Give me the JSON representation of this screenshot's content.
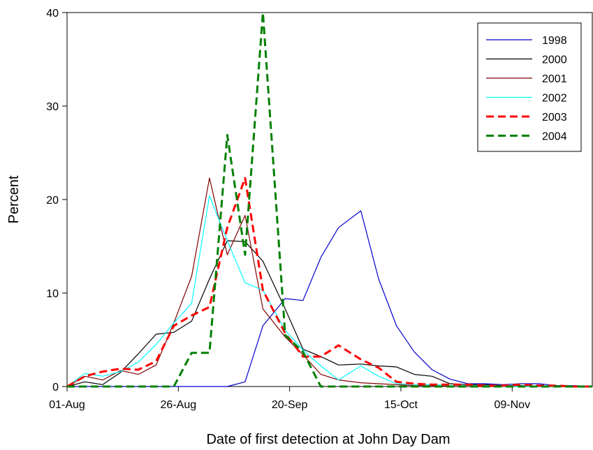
{
  "chart_data": {
    "type": "line",
    "title": "",
    "xlabel": "Date of first detection at John Day Dam",
    "ylabel": "Percent",
    "x_tick_labels": [
      "01-Aug",
      "26-Aug",
      "20-Sep",
      "15-Oct",
      "09-Nov"
    ],
    "x_ticks": [
      "2000-08-01",
      "2000-08-26",
      "2000-09-20",
      "2000-10-15",
      "2000-11-09"
    ],
    "xlim": [
      "2000-08-01",
      "2000-11-27"
    ],
    "ylim": [
      0,
      40
    ],
    "y_ticks": [
      0,
      10,
      20,
      30,
      40
    ],
    "grid": false,
    "legend": "top-right",
    "x": [
      "2000-08-01",
      "2000-08-05",
      "2000-08-09",
      "2000-08-13",
      "2000-08-17",
      "2000-08-21",
      "2000-08-25",
      "2000-08-29",
      "2000-09-02",
      "2000-09-06",
      "2000-09-10",
      "2000-09-14",
      "2000-09-19",
      "2000-09-23",
      "2000-09-27",
      "2000-10-01",
      "2000-10-06",
      "2000-10-10",
      "2000-10-14",
      "2000-10-18",
      "2000-10-22",
      "2000-10-26",
      "2000-10-30",
      "2000-11-03",
      "2000-11-07",
      "2000-11-11",
      "2000-11-15",
      "2000-11-19",
      "2000-11-23",
      "2000-11-27"
    ],
    "series": [
      {
        "name": "1998",
        "color": "#0000cc",
        "dash": false,
        "width": 1.2,
        "values": [
          0,
          0,
          0,
          0,
          0,
          0,
          0,
          0,
          0,
          0,
          0.5,
          6.5,
          9.4,
          9.2,
          13.8,
          17.0,
          18.8,
          11.5,
          6.5,
          3.7,
          1.8,
          0.8,
          0.3,
          0.3,
          0.2,
          0.3,
          0.3,
          0.1,
          0.1,
          0
        ]
      },
      {
        "name": "2000",
        "color": "#000000",
        "dash": false,
        "width": 1.2,
        "values": [
          0,
          0.5,
          0.2,
          1.5,
          3.5,
          5.6,
          5.8,
          7.0,
          11.5,
          15.6,
          15.5,
          13.4,
          8.3,
          4.0,
          3.2,
          2.3,
          2.4,
          2.2,
          2.1,
          1.3,
          1.1,
          0.3,
          0.2,
          0.2,
          0.1,
          0.1,
          0,
          0,
          0,
          0
        ]
      },
      {
        "name": "2001",
        "color": "#800000",
        "dash": false,
        "width": 1.2,
        "values": [
          0,
          1.1,
          0.7,
          1.7,
          1.3,
          2.3,
          6.8,
          11.8,
          22.3,
          14.1,
          18.3,
          8.3,
          5.3,
          3.4,
          1.3,
          0.7,
          0.4,
          0.3,
          0.2,
          0.1,
          0.1,
          0,
          0,
          0,
          0,
          0,
          0,
          0,
          0,
          0
        ]
      },
      {
        "name": "2002",
        "color": "#00ffff",
        "dash": false,
        "width": 1.2,
        "values": [
          0,
          1.4,
          1.1,
          1.6,
          2.6,
          4.5,
          6.8,
          8.9,
          20.4,
          15.6,
          11.1,
          10.3,
          6.0,
          3.9,
          2.2,
          0.7,
          2.2,
          1.1,
          0.3,
          0.2,
          0.2,
          0.1,
          0.1,
          0.1,
          0,
          0,
          0,
          0,
          0,
          0
        ]
      },
      {
        "name": "2003",
        "color": "#ff0000",
        "dash": true,
        "width": 3,
        "values": [
          0,
          1.1,
          1.6,
          1.9,
          1.8,
          2.7,
          6.5,
          7.6,
          8.5,
          17.0,
          22.3,
          10.3,
          5.7,
          3.2,
          3.2,
          4.4,
          2.9,
          2.0,
          0.5,
          0.3,
          0.2,
          0.2,
          0.2,
          0.1,
          0.1,
          0.2,
          0.1,
          0.1,
          0,
          0
        ]
      },
      {
        "name": "2004",
        "color": "#008000",
        "dash": true,
        "width": 3,
        "values": [
          0,
          0,
          0,
          0,
          0,
          0,
          0,
          3.6,
          3.6,
          26.9,
          14.1,
          40.0,
          5.5,
          3.7,
          0,
          0,
          0,
          0,
          0,
          0,
          0,
          0,
          0,
          0,
          0,
          0,
          0,
          0,
          0,
          0
        ]
      }
    ]
  }
}
